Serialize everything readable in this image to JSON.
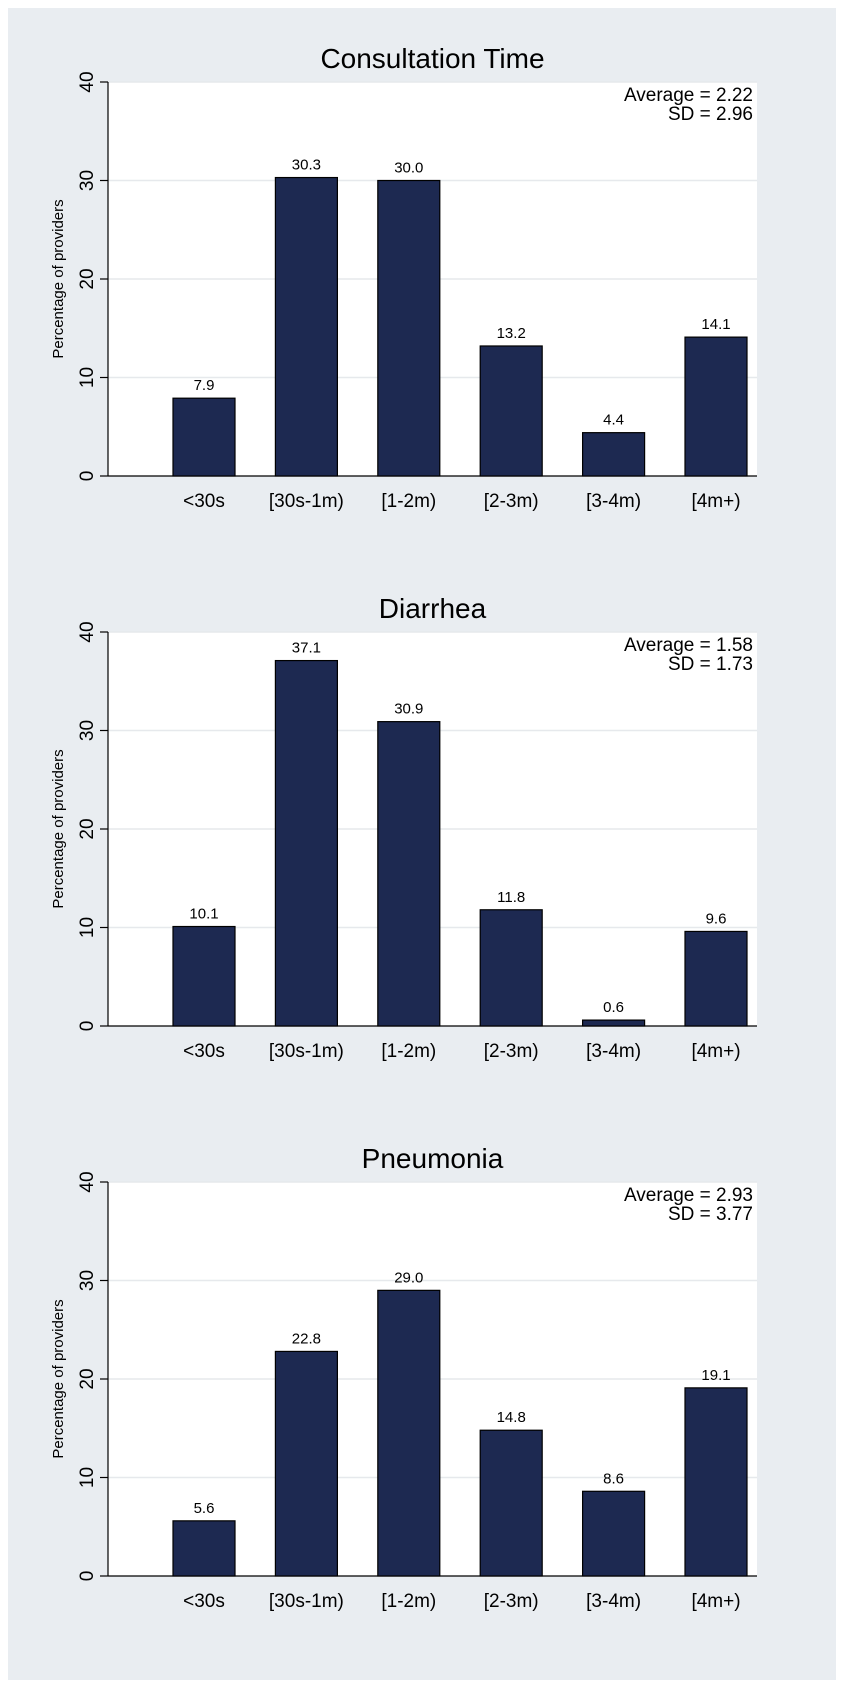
{
  "chart_data": [
    {
      "type": "bar",
      "title": "Consultation Time",
      "ylabel": "Percentage of providers",
      "categories": [
        "<30s",
        "[30s-1m)",
        "[1-2m)",
        "[2-3m)",
        "[3-4m)",
        "[4m+)"
      ],
      "values": [
        7.9,
        30.3,
        30.0,
        13.2,
        4.4,
        14.1
      ],
      "value_labels": [
        "7.9",
        "30.3",
        "30.0",
        "13.2",
        "4.4",
        "14.1"
      ],
      "ylim": [
        0,
        40
      ],
      "yticks": [
        0,
        10,
        20,
        30,
        40
      ],
      "average_text": "Average = 2.22",
      "sd_text": "SD = 2.96",
      "grid": true,
      "legend": "none",
      "bar_color": "#1d2951"
    },
    {
      "type": "bar",
      "title": "Diarrhea",
      "ylabel": "Percentage of providers",
      "categories": [
        "<30s",
        "[30s-1m)",
        "[1-2m)",
        "[2-3m)",
        "[3-4m)",
        "[4m+)"
      ],
      "values": [
        10.1,
        37.1,
        30.9,
        11.8,
        0.6,
        9.6
      ],
      "value_labels": [
        "10.1",
        "37.1",
        "30.9",
        "11.8",
        "0.6",
        "9.6"
      ],
      "ylim": [
        0,
        40
      ],
      "yticks": [
        0,
        10,
        20,
        30,
        40
      ],
      "average_text": "Average = 1.58",
      "sd_text": "SD = 1.73",
      "grid": true,
      "legend": "none",
      "bar_color": "#1d2951"
    },
    {
      "type": "bar",
      "title": "Pneumonia",
      "ylabel": "Percentage of providers",
      "categories": [
        "<30s",
        "[30s-1m)",
        "[1-2m)",
        "[2-3m)",
        "[3-4m)",
        "[4m+)"
      ],
      "values": [
        5.6,
        22.8,
        29.0,
        14.8,
        8.6,
        19.1
      ],
      "value_labels": [
        "5.6",
        "22.8",
        "29.0",
        "14.8",
        "8.6",
        "19.1"
      ],
      "ylim": [
        0,
        40
      ],
      "yticks": [
        0,
        10,
        20,
        30,
        40
      ],
      "average_text": "Average = 2.93",
      "sd_text": "SD = 3.77",
      "grid": true,
      "legend": "none",
      "bar_color": "#1d2951"
    }
  ]
}
